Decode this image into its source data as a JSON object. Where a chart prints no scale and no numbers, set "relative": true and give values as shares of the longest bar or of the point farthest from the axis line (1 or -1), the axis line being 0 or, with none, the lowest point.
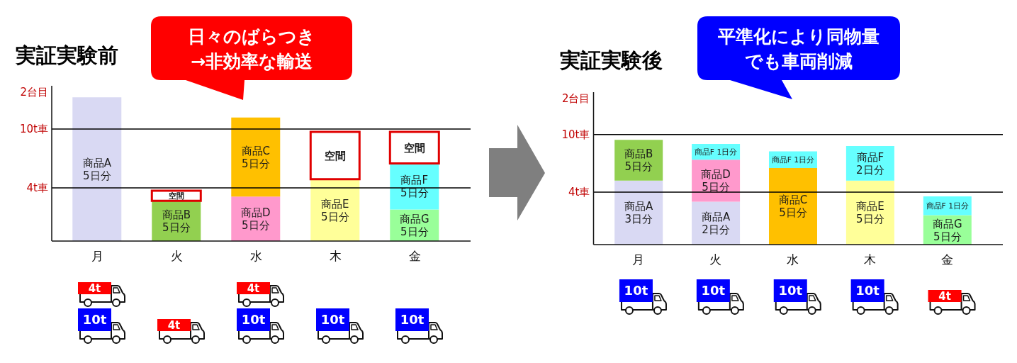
{
  "chart_data": [
    {
      "type": "bar",
      "title": "実証実験前",
      "ylabel": "2台目",
      "categories": [
        "月",
        "火",
        "水",
        "木",
        "金"
      ],
      "stacked": true,
      "relative": true,
      "series": [
        {
          "name": "商品A 5日分",
          "color": "#d9d9f3",
          "values": [
            1,
            null,
            null,
            null,
            null
          ]
        },
        {
          "name": "商品B 5日分",
          "color": "#92d050",
          "values": [
            null,
            0.28,
            null,
            null,
            null
          ]
        },
        {
          "name": "商品D 5日分",
          "color": "#ff99cc",
          "values": [
            null,
            null,
            0.31,
            null,
            null
          ]
        },
        {
          "name": "商品C 5日分",
          "color": "#ffc000",
          "values": [
            null,
            null,
            0.55,
            null,
            null
          ]
        },
        {
          "name": "商品E 5日分",
          "color": "#ffff99",
          "values": [
            null,
            null,
            null,
            0.43,
            null
          ]
        },
        {
          "name": "商品G 5日分",
          "color": "#99ff99",
          "values": [
            null,
            null,
            null,
            null,
            0.22
          ]
        },
        {
          "name": "商品F 5日分",
          "color": "#66ffff",
          "values": [
            null,
            null,
            null,
            null,
            0.32
          ]
        },
        {
          "name": "空間",
          "color": "#ffffff",
          "values": [
            null,
            0.07,
            null,
            0.33,
            0.22
          ]
        }
      ],
      "ref_lines": [
        {
          "axis": "y",
          "value": 0.37,
          "label": "4t車",
          "color": "#000000"
        },
        {
          "axis": "y",
          "value": 0.78,
          "label": "10t車",
          "color": "#000000"
        }
      ],
      "annotations": [
        "日々のばらつき→非効率な輸送",
        "4t",
        "10t",
        "4t",
        "4t",
        "10t",
        "10t",
        "10t"
      ]
    },
    {
      "type": "bar",
      "title": "実証実験後",
      "ylabel": "2台目",
      "categories": [
        "月",
        "火",
        "水",
        "木",
        "金"
      ],
      "stacked": true,
      "relative": true,
      "series": [
        {
          "name": "商品A 3日分",
          "color": "#d9d9f3",
          "values": [
            0.61,
            null,
            null,
            null,
            null
          ]
        },
        {
          "name": "商品A 2日分",
          "color": "#d9d9f3",
          "values": [
            null,
            0.41,
            null,
            null,
            null
          ]
        },
        {
          "name": "商品B 5日分",
          "color": "#92d050",
          "values": [
            0.39,
            null,
            null,
            null,
            null
          ]
        },
        {
          "name": "商品D 5日分",
          "color": "#ff99cc",
          "values": [
            null,
            0.4,
            null,
            null,
            null
          ]
        },
        {
          "name": "商品C 5日分",
          "color": "#ffc000",
          "values": [
            null,
            null,
            0.73,
            null,
            null
          ]
        },
        {
          "name": "商品E 5日分",
          "color": "#ffff99",
          "values": [
            null,
            null,
            null,
            0.61,
            null
          ]
        },
        {
          "name": "商品G 5日分",
          "color": "#99ff99",
          "values": [
            null,
            null,
            null,
            null,
            0.28
          ]
        },
        {
          "name": "商品F 1日分",
          "color": "#66ffff",
          "values": [
            null,
            0.15,
            0.16,
            null,
            0.18
          ]
        },
        {
          "name": "商品F 2日分",
          "color": "#66ffff",
          "values": [
            null,
            null,
            null,
            0.33,
            null
          ]
        }
      ],
      "ref_lines": [
        {
          "axis": "y",
          "value": 0.5,
          "label": "4t車",
          "color": "#000000"
        },
        {
          "axis": "y",
          "value": 1.05,
          "label": "10t車",
          "color": "#000000"
        }
      ],
      "annotations": [
        "平準化により同物量でも車両削減",
        "10t",
        "10t",
        "10t",
        "10t",
        "4t"
      ]
    }
  ]
}
